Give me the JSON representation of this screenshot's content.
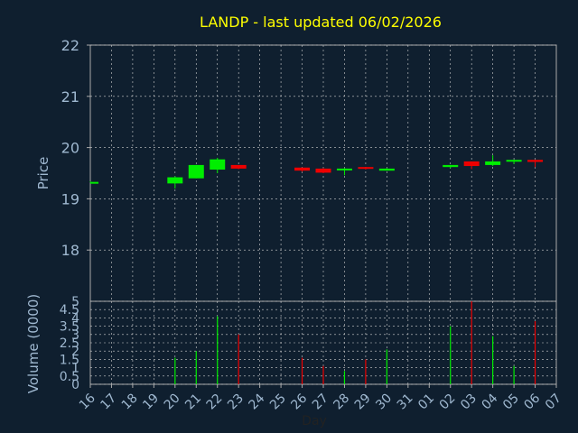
{
  "chart_data": [
    {
      "type": "candlestick",
      "title": "LANDP - last updated 06/02/2026",
      "ylabel": "Price",
      "ylim": [
        17.0,
        22.0
      ],
      "yticks": [
        "18",
        "19",
        "20",
        "21",
        "22"
      ],
      "grid": true,
      "x_index": [
        0,
        4,
        5,
        6,
        7,
        10,
        11,
        12,
        13,
        14,
        17,
        18,
        19,
        20,
        21
      ],
      "candles": [
        {
          "o": 19.33,
          "h": 19.34,
          "l": 19.32,
          "c": 19.33,
          "color": "up"
        },
        {
          "o": 19.42,
          "h": 19.44,
          "l": 19.2,
          "c": 19.3,
          "color": "up"
        },
        {
          "o": 19.4,
          "h": 19.66,
          "l": 19.4,
          "c": 19.66,
          "color": "up"
        },
        {
          "o": 19.57,
          "h": 19.8,
          "l": 19.5,
          "c": 19.77,
          "color": "up"
        },
        {
          "o": 19.66,
          "h": 19.66,
          "l": 19.58,
          "c": 19.59,
          "color": "down"
        },
        {
          "o": 19.61,
          "h": 19.61,
          "l": 19.53,
          "c": 19.55,
          "color": "down"
        },
        {
          "o": 19.59,
          "h": 19.6,
          "l": 19.5,
          "c": 19.51,
          "color": "down"
        },
        {
          "o": 19.57,
          "h": 19.6,
          "l": 19.46,
          "c": 19.59,
          "color": "up"
        },
        {
          "o": 19.62,
          "h": 19.62,
          "l": 19.57,
          "c": 19.59,
          "color": "down"
        },
        {
          "o": 19.55,
          "h": 19.6,
          "l": 19.55,
          "c": 19.59,
          "color": "up"
        },
        {
          "o": 19.62,
          "h": 19.66,
          "l": 19.6,
          "c": 19.66,
          "color": "up"
        },
        {
          "o": 19.73,
          "h": 19.73,
          "l": 19.58,
          "c": 19.64,
          "color": "down"
        },
        {
          "o": 19.66,
          "h": 19.85,
          "l": 19.64,
          "c": 19.73,
          "color": "up"
        },
        {
          "o": 19.73,
          "h": 19.76,
          "l": 19.68,
          "c": 19.76,
          "color": "up"
        },
        {
          "o": 19.76,
          "h": 19.76,
          "l": 19.62,
          "c": 19.72,
          "color": "down"
        }
      ]
    },
    {
      "type": "bar",
      "ylabel": "Volume (0000)",
      "xlabel": "Day",
      "ylim": [
        0,
        5
      ],
      "yticks": [
        "0",
        "0.5",
        "1",
        "1.5",
        "2",
        "2.5",
        "3",
        "3.5",
        "4",
        "4.5",
        "5"
      ],
      "categories": [
        "16",
        "17",
        "18",
        "19",
        "20",
        "21",
        "22",
        "23",
        "24",
        "25",
        "26",
        "27",
        "28",
        "29",
        "30",
        "31",
        "01",
        "02",
        "03",
        "04",
        "05",
        "06",
        "07"
      ],
      "bars": [
        {
          "x": 4,
          "v": 1.6,
          "color": "up"
        },
        {
          "x": 5,
          "v": 2.0,
          "color": "up"
        },
        {
          "x": 6,
          "v": 4.1,
          "color": "up"
        },
        {
          "x": 7,
          "v": 3.0,
          "color": "down"
        },
        {
          "x": 10,
          "v": 1.6,
          "color": "down"
        },
        {
          "x": 11,
          "v": 1.1,
          "color": "down"
        },
        {
          "x": 12,
          "v": 0.8,
          "color": "up"
        },
        {
          "x": 13,
          "v": 1.5,
          "color": "down"
        },
        {
          "x": 14,
          "v": 2.1,
          "color": "up"
        },
        {
          "x": 17,
          "v": 3.5,
          "color": "up"
        },
        {
          "x": 18,
          "v": 5.0,
          "color": "down"
        },
        {
          "x": 19,
          "v": 2.9,
          "color": "up"
        },
        {
          "x": 20,
          "v": 1.1,
          "color": "up"
        },
        {
          "x": 21,
          "v": 3.8,
          "color": "down"
        }
      ]
    }
  ],
  "colors": {
    "background": "#0f1f2f",
    "axis": "#aaaaaa",
    "grid": "#cfcfcf",
    "title": "#ffff00",
    "label": "#9fb8d0",
    "up": "#00ee00",
    "down": "#ee0000"
  }
}
